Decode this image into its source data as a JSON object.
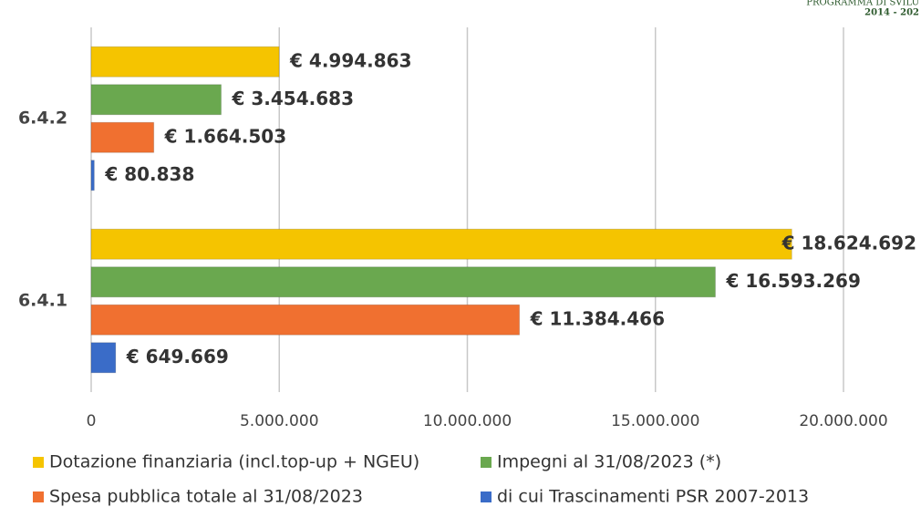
{
  "logo_lines": [
    "PROGRAMMA DI SVILU",
    "2014 - 202"
  ],
  "chart_data": {
    "type": "hbar",
    "categories": [
      "6.4.2",
      "6.4.1"
    ],
    "series": [
      {
        "name": "Dotazione finanziaria (incl.top-up + NGEU)",
        "color": "#f5c400",
        "values": [
          4994863,
          18624692
        ],
        "value_labels": [
          "€ 4.994.863",
          "€ 18.624.692"
        ]
      },
      {
        "name": "Impegni al 31/08/2023 (*)",
        "color": "#6aa84f",
        "values": [
          3454683,
          16593269
        ],
        "value_labels": [
          "€ 3.454.683",
          "€ 16.593.269"
        ]
      },
      {
        "name": "Spesa pubblica totale al 31/08/2023",
        "color": "#f07030",
        "values": [
          1664503,
          11384466
        ],
        "value_labels": [
          "€ 1.664.503",
          "€ 11.384.466"
        ]
      },
      {
        "name": "di cui Trascinamenti PSR 2007-2013",
        "color": "#3a6cc8",
        "values": [
          80838,
          649669
        ],
        "value_labels": [
          "€ 80.838",
          "€ 649.669"
        ]
      }
    ],
    "xlim": [
      0,
      20000000
    ],
    "xticks": [
      0,
      {
        "value": 5000000,
        "label": "5.000.000"
      },
      {
        "value": 10000000,
        "label": "10.000.000"
      },
      {
        "value": 15000000,
        "label": "15.000.000"
      },
      {
        "value": 20000000,
        "label": "20.000.000"
      }
    ],
    "grid": true
  }
}
